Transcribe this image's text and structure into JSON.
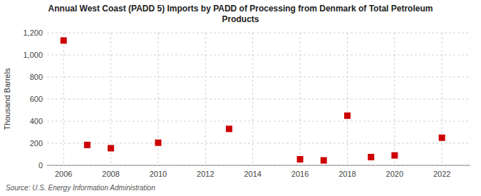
{
  "chart_data": {
    "type": "scatter",
    "title": "Annual West Coast (PADD 5) Imports by PADD of Processing from Denmark of Total Petroleum\nProducts",
    "ylabel": "Thousand Barrels",
    "source": "Source: U.S. Energy Information Administration",
    "x": [
      2006,
      2007,
      2008,
      2010,
      2013,
      2016,
      2017,
      2018,
      2019,
      2020,
      2022
    ],
    "values": [
      1130,
      185,
      155,
      205,
      330,
      55,
      45,
      450,
      75,
      90,
      250
    ],
    "color": "#cc0000",
    "marker": "square",
    "xlim": [
      2005.3,
      2023.2
    ],
    "xticks": [
      2006,
      2008,
      2010,
      2012,
      2014,
      2016,
      2018,
      2020,
      2022
    ],
    "ylim": [
      0,
      1200
    ],
    "yticks": [
      0,
      200,
      400,
      600,
      800,
      {
        "value": 1000,
        "label": "1,000"
      },
      {
        "value": 1200,
        "label": "1,200"
      }
    ],
    "grid": true
  }
}
